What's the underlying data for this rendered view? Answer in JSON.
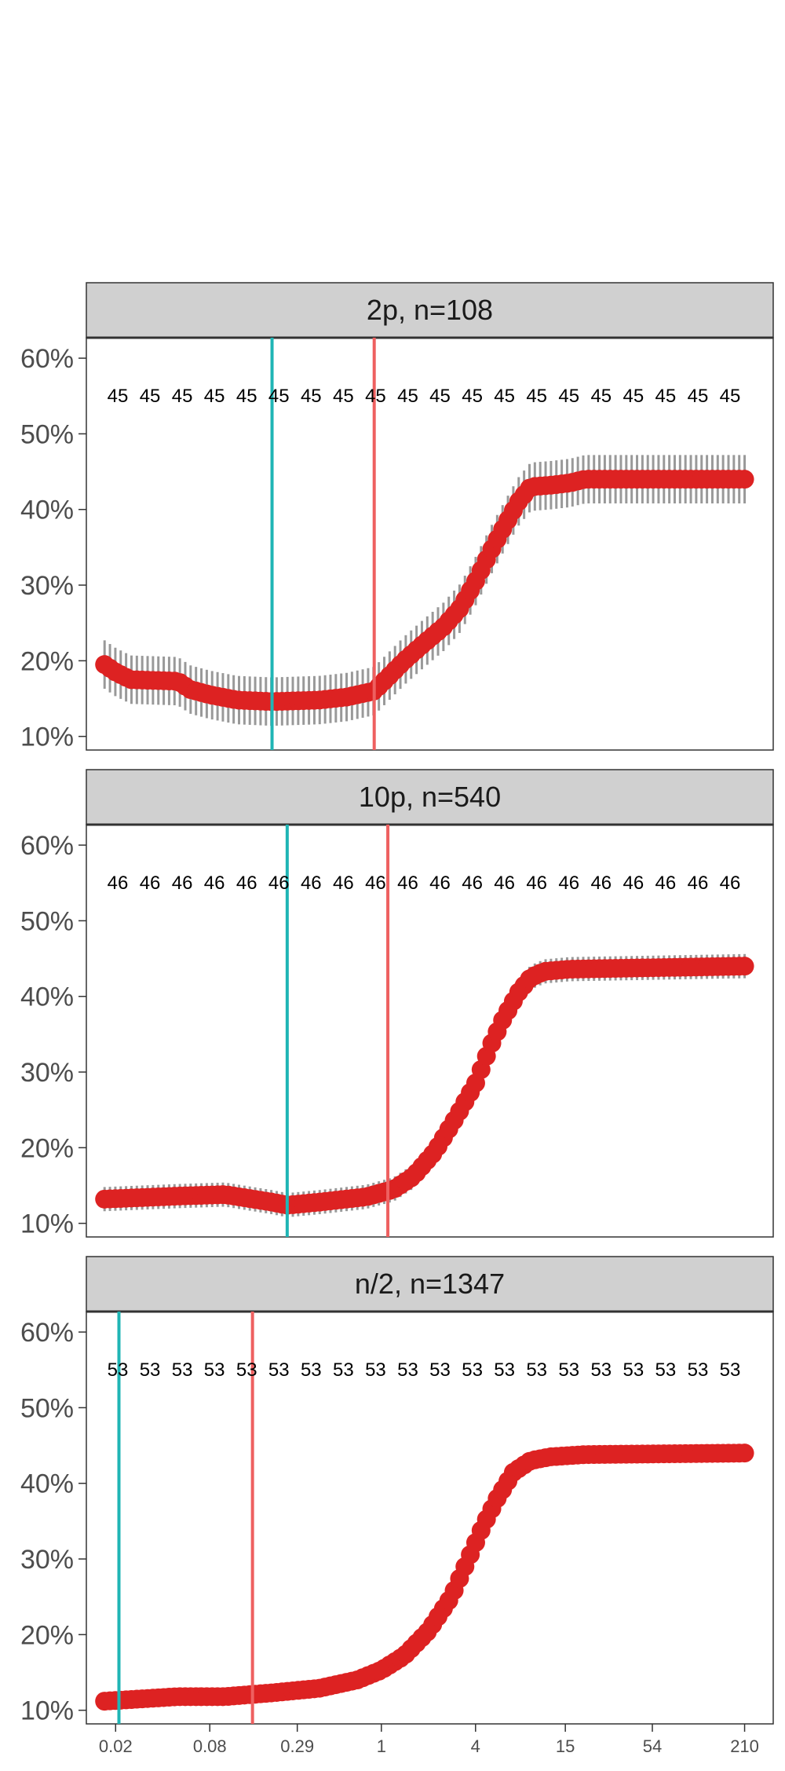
{
  "chart_data": {
    "type": "scatter",
    "x_scale": "log",
    "x_ticks": [
      {
        "value": 0.02,
        "label": "0.02"
      },
      {
        "value": 0.08,
        "label": "0.08"
      },
      {
        "value": 0.29,
        "label": "0.29"
      },
      {
        "value": 1,
        "label": "1"
      },
      {
        "value": 4,
        "label": "4"
      },
      {
        "value": 15,
        "label": "15"
      },
      {
        "value": 54,
        "label": "54"
      },
      {
        "value": 210,
        "label": "210"
      }
    ],
    "y_ticks": [
      {
        "value": 10,
        "label": "10%"
      },
      {
        "value": 20,
        "label": "20%"
      },
      {
        "value": 30,
        "label": "30%"
      },
      {
        "value": 40,
        "label": "40%"
      },
      {
        "value": 50,
        "label": "50%"
      },
      {
        "value": 60,
        "label": "60%"
      }
    ],
    "ylim": [
      8.2,
      62.5
    ],
    "xlim": [
      0.013,
      320
    ],
    "point_color": "#dd2222",
    "error_bar_color": "#999999",
    "vline_colors": [
      "#1fb5b5",
      "#ee6060"
    ],
    "panels": [
      {
        "label": "2p, n=108",
        "count_label": "45",
        "count_repeats": 20,
        "count_y": 55,
        "vline_cyan": 0.2,
        "vline_red": 0.9,
        "err_half_width": 3.2,
        "curve": [
          [
            0.017,
            19.5
          ],
          [
            0.02,
            18.5
          ],
          [
            0.025,
            17.5
          ],
          [
            0.05,
            17.3
          ],
          [
            0.06,
            16.2
          ],
          [
            0.08,
            15.5
          ],
          [
            0.12,
            14.8
          ],
          [
            0.2,
            14.6
          ],
          [
            0.4,
            14.8
          ],
          [
            0.6,
            15.2
          ],
          [
            0.9,
            16
          ],
          [
            1.1,
            17.8
          ],
          [
            1.4,
            20
          ],
          [
            1.8,
            22
          ],
          [
            2.5,
            24.5
          ],
          [
            3.2,
            27
          ],
          [
            4,
            30.5
          ],
          [
            5,
            34.5
          ],
          [
            6,
            37.5
          ],
          [
            7.5,
            41
          ],
          [
            9,
            43
          ],
          [
            12,
            43.2
          ],
          [
            16,
            43.5
          ],
          [
            20,
            44
          ],
          [
            210,
            44
          ]
        ]
      },
      {
        "label": "10p, n=540",
        "count_label": "46",
        "count_repeats": 20,
        "count_y": 55,
        "vline_cyan": 0.25,
        "vline_red": 1.1,
        "err_half_width": 1.6,
        "curve": [
          [
            0.017,
            13.2
          ],
          [
            0.05,
            13.6
          ],
          [
            0.1,
            13.8
          ],
          [
            0.2,
            12.8
          ],
          [
            0.25,
            12.4
          ],
          [
            0.4,
            12.8
          ],
          [
            0.8,
            13.5
          ],
          [
            1.2,
            14.5
          ],
          [
            1.6,
            16.2
          ],
          [
            2.2,
            19.5
          ],
          [
            3,
            24
          ],
          [
            4,
            28.5
          ],
          [
            5,
            33.5
          ],
          [
            6,
            37
          ],
          [
            7.5,
            40.5
          ],
          [
            9,
            42.5
          ],
          [
            11,
            43.3
          ],
          [
            16,
            43.6
          ],
          [
            210,
            44
          ]
        ]
      },
      {
        "label": "n/2, n=1347",
        "count_label": "53",
        "count_repeats": 20,
        "count_y": 55,
        "vline_cyan": 0.021,
        "vline_red": 0.15,
        "err_half_width": 1.2,
        "curve": [
          [
            0.017,
            11.2
          ],
          [
            0.05,
            11.8
          ],
          [
            0.1,
            11.8
          ],
          [
            0.2,
            12.3
          ],
          [
            0.4,
            12.9
          ],
          [
            0.7,
            14
          ],
          [
            1,
            15.3
          ],
          [
            1.4,
            17.2
          ],
          [
            2,
            20.5
          ],
          [
            2.8,
            25
          ],
          [
            3.6,
            30
          ],
          [
            4.5,
            34.5
          ],
          [
            5.5,
            38
          ],
          [
            7,
            41.5
          ],
          [
            9,
            43
          ],
          [
            12,
            43.5
          ],
          [
            20,
            43.8
          ],
          [
            210,
            44
          ]
        ]
      }
    ]
  }
}
